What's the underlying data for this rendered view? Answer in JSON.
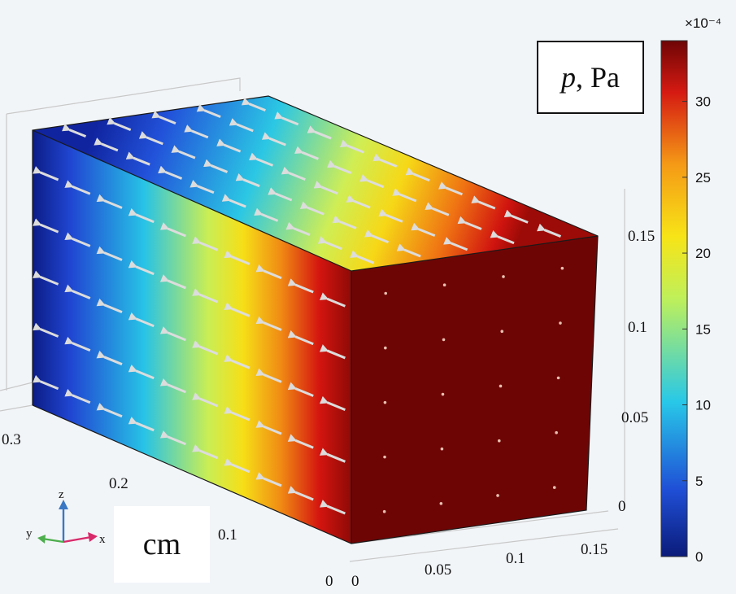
{
  "chart_data": {
    "type": "heatmap",
    "title_variable": "p",
    "title_unit": ", Pa",
    "colorbar": {
      "exponent_label": "×10⁻⁴",
      "min": 0,
      "max": 34,
      "ticks": [
        "0",
        "5",
        "10",
        "15",
        "20",
        "25",
        "30"
      ],
      "tick_values": [
        0,
        5,
        10,
        15,
        20,
        25,
        30
      ],
      "colormap": [
        "#0b1b7a",
        "#1f4fd6",
        "#28c8e8",
        "#bff05a",
        "#f7e417",
        "#f59a16",
        "#d51a12",
        "#6e0505"
      ]
    },
    "x_axis_ticks": [
      "0",
      "0.05",
      "0.1",
      "0.15"
    ],
    "y_axis_ticks": [
      "0",
      "0.1",
      "0.2",
      "0.3"
    ],
    "z_axis_ticks": [
      "0",
      "0.05",
      "0.1",
      "0.15"
    ],
    "units_label": "cm",
    "triad": {
      "x": "x",
      "y": "y",
      "z": "z"
    },
    "field_description_values": {
      "front_face_gradient_stops": [
        0,
        0.3,
        0.55,
        0.78,
        1.0
      ],
      "right_face_value": 34
    }
  },
  "colors": {
    "background": "#f2f5f8",
    "right_face": "#6e0505",
    "arrow": "#d9d9d9"
  }
}
